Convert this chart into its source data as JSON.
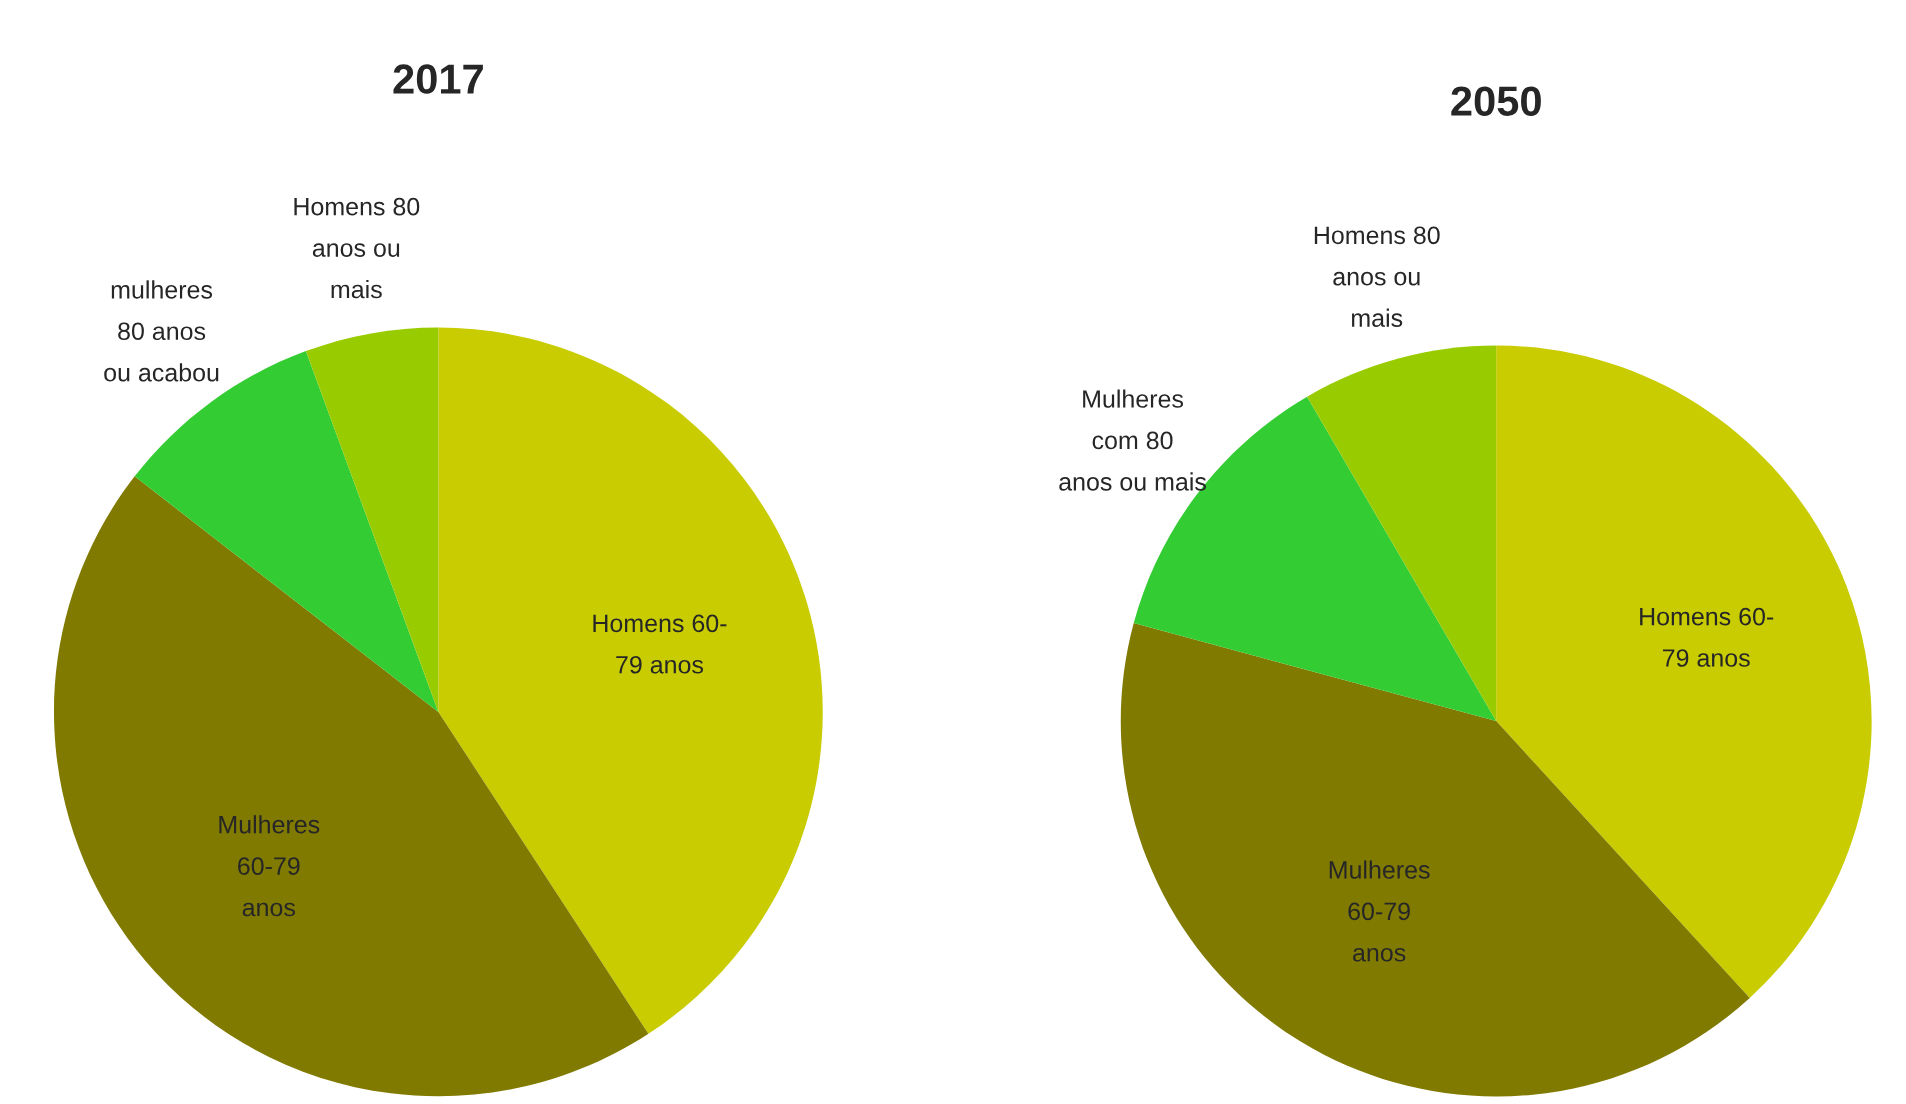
{
  "chart_data": [
    {
      "type": "pie",
      "title": "2017",
      "categories": [
        "Homens 60-\n79 anos",
        "Mulheres\n60-79\nanos",
        "mulheres\n80 anos\nou acabou",
        "Homens 80\nanos ou\nmais"
      ],
      "values": [
        40.8,
        44.7,
        8.9,
        5.6
      ],
      "colors": [
        "#c8cc00",
        "#807a00",
        "#33cc33",
        "#99cc00"
      ]
    },
    {
      "type": "pie",
      "title": "2050",
      "categories": [
        "Homens 60-\n79 anos",
        "Mulheres\n60-79\nanos",
        "Mulheres\ncom 80\nanos ou mais",
        "Homens 80\nanos ou\nmais"
      ],
      "values": [
        38.2,
        41.0,
        12.4,
        8.4
      ],
      "colors": [
        "#c8cc00",
        "#807a00",
        "#33cc33",
        "#99cc00"
      ]
    }
  ]
}
